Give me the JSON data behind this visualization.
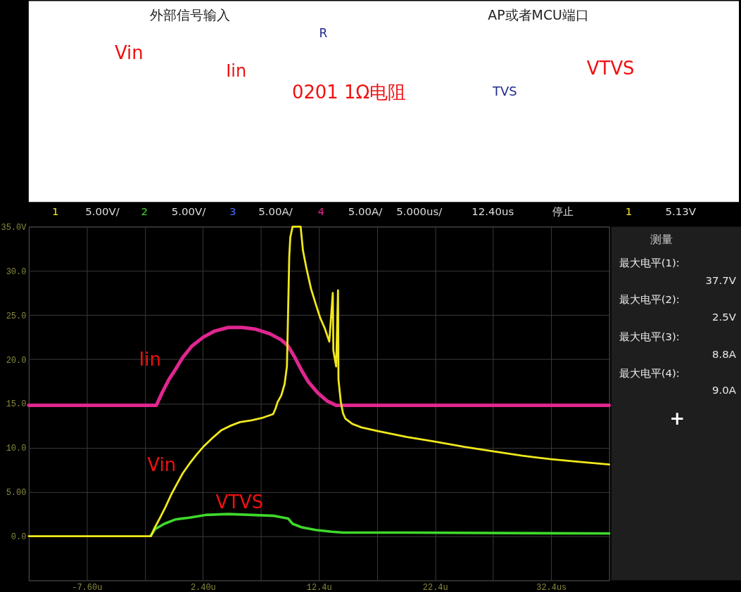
{
  "chart_data": {
    "type": "line",
    "annotations": [
      "外部信号输入",
      "AP或者MCU端口",
      "Vin",
      "R",
      "Iin",
      "0201 1Ω电阻",
      "TVS",
      "VTVS",
      "1",
      "5.00V/",
      "2",
      "5.00V/",
      "3",
      "5.00A/",
      "4",
      "5.00A/",
      "5.000us/",
      "12.40us",
      "停止",
      "1",
      "5.13V",
      "测量",
      "最大电平(1):",
      "37.7V",
      "最大电平(2):",
      "2.5V",
      "最大电平(3):",
      "8.8A",
      "最大电平(4):",
      "9.0A",
      "+"
    ],
    "xlim": [
      -12.6,
      37.4
    ],
    "xticks": [
      {
        "value": -7.6,
        "label": "-7.60u"
      },
      {
        "value": -2.6,
        "label": null
      },
      {
        "value": 2.4,
        "label": "2.40u"
      },
      {
        "value": 7.4,
        "label": null
      },
      {
        "value": 12.4,
        "label": "12.4u"
      },
      {
        "value": 17.4,
        "label": null
      },
      {
        "value": 22.4,
        "label": "22.4u"
      },
      {
        "value": 27.4,
        "label": null
      },
      {
        "value": 32.4,
        "label": "32.4us"
      }
    ],
    "ylim": [
      -5,
      35
    ],
    "yticks": [
      {
        "value": 35,
        "label": "35.0V"
      },
      {
        "value": 30,
        "label": "30.0"
      },
      {
        "value": 25,
        "label": "25.0"
      },
      {
        "value": 20,
        "label": "20.0"
      },
      {
        "value": 15,
        "label": "15.0"
      },
      {
        "value": 10,
        "label": "10.0"
      },
      {
        "value": 5,
        "label": "5.00"
      },
      {
        "value": 0,
        "label": "0.0"
      }
    ],
    "grid": true,
    "line_style": "solid",
    "series": [
      {
        "name": "Iin",
        "color": "#e0268f",
        "x": [
          -12.6,
          -1.61,
          -1.12,
          -0.53,
          0.06,
          0.66,
          1.45,
          2.43,
          3.42,
          4.6,
          5.79,
          6.97,
          8.16,
          9.15,
          9.74,
          10.33,
          10.92,
          11.51,
          12.3,
          13.09,
          13.88,
          37.4
        ],
        "values": [
          14.8,
          14.8,
          16.2,
          17.7,
          18.9,
          20.2,
          21.5,
          22.5,
          23.2,
          23.6,
          23.6,
          23.4,
          22.9,
          22.2,
          21.5,
          20.2,
          18.7,
          17.4,
          16.2,
          15.3,
          14.8,
          14.8
        ]
      },
      {
        "name": "VTVS",
        "color": "#3fd82b",
        "x": [
          -2.07,
          -1.71,
          -0.92,
          0.06,
          1.25,
          2.63,
          4.6,
          6.58,
          8.55,
          9.34,
          9.74,
          10.13,
          10.92,
          12.11,
          13.49,
          14.47,
          20.0,
          37.4
        ],
        "values": [
          0.1,
          0.8,
          1.4,
          1.9,
          2.1,
          2.4,
          2.5,
          2.4,
          2.3,
          2.1,
          2.0,
          1.4,
          1.0,
          0.7,
          0.5,
          0.4,
          0.4,
          0.3
        ]
      },
      {
        "name": "Vin",
        "color": "#f0e81c",
        "x": [
          -12.6,
          -2.07,
          -1.81,
          -1.32,
          -0.82,
          -0.33,
          0.16,
          0.66,
          1.25,
          1.84,
          2.43,
          3.22,
          4.01,
          4.8,
          5.59,
          6.58,
          7.57,
          8.45,
          8.65,
          8.85,
          9.15,
          9.44,
          9.64,
          9.74,
          9.84,
          9.93,
          10.13,
          10.82,
          11.02,
          11.32,
          11.71,
          12.11,
          12.5,
          12.9,
          13.29,
          13.59,
          13.64,
          13.88,
          14.04,
          14.08,
          14.28,
          14.47,
          14.67,
          15.27,
          16.06,
          17.4,
          20.0,
          22.4,
          24.95,
          27.4,
          29.9,
          32.4,
          34.83,
          37.4
        ],
        "values": [
          0,
          0,
          0.8,
          2.0,
          3.3,
          4.7,
          5.9,
          7.1,
          8.2,
          9.2,
          10.1,
          11.1,
          12.0,
          12.5,
          12.9,
          13.1,
          13.4,
          13.8,
          14.4,
          15.2,
          15.9,
          17.2,
          19.2,
          25.3,
          31.6,
          33.8,
          35,
          35,
          32.3,
          30.3,
          28.0,
          26.3,
          24.7,
          23.5,
          22.0,
          27.5,
          21.0,
          19.2,
          27.8,
          17.7,
          15.2,
          13.9,
          13.3,
          12.7,
          12.3,
          11.9,
          11.2,
          10.7,
          10.1,
          9.6,
          9.1,
          8.7,
          8.4,
          8.1
        ]
      }
    ]
  }
}
